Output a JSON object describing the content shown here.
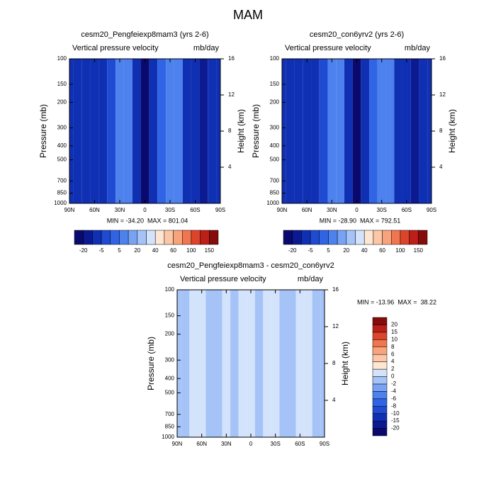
{
  "title": "MAM",
  "chart_data": [
    {
      "type": "contour",
      "title": "cesm20_Pengfeiexp8mam3 (yrs 2-6)",
      "subtitle_left": "Vertical pressure velocity",
      "subtitle_right": "mb/day",
      "stats": "MIN = -34.20  MAX = 801.04",
      "ylabel": "Pressure (mb)",
      "y2label": "Height (km)",
      "x": [
        90,
        80,
        70,
        60,
        50,
        40,
        30,
        20,
        10,
        0,
        -10,
        -20,
        -30,
        -40,
        -50,
        -60,
        -70,
        -80,
        -90
      ],
      "values": [
        -8,
        -8,
        -6,
        -6,
        -9,
        -4,
        12,
        8,
        -12,
        -22,
        -12,
        3,
        12,
        6,
        -6,
        -12,
        -15,
        -6,
        -6
      ],
      "xlim": [
        90,
        -90
      ],
      "xticks": [
        {
          "value": 90,
          "label": "90N"
        },
        {
          "value": 60,
          "label": "60N"
        },
        {
          "value": 30,
          "label": "30N"
        },
        0,
        {
          "value": -30,
          "label": "30S"
        },
        {
          "value": -60,
          "label": "60S"
        },
        {
          "value": -90,
          "label": "90S"
        }
      ],
      "ylim": [
        1000,
        100
      ],
      "ylog": true,
      "yticks": [
        100,
        150,
        200,
        300,
        400,
        500,
        700,
        850,
        1000
      ],
      "y2lim": [
        0,
        16
      ],
      "y2ticks": [
        4,
        8,
        12,
        16
      ],
      "colorbar": {
        "orientation": "horizontal",
        "colors": [
          "#0a0a6e",
          "#0c1a92",
          "#1030b4",
          "#1f4bd2",
          "#3064e4",
          "#4d82ee",
          "#78a3f4",
          "#a6c3f8",
          "#d2e3fb",
          "#fde6d2",
          "#fbc7a6",
          "#f7a37c",
          "#ef7650",
          "#dd452b",
          "#bc1f18",
          "#860b0b"
        ],
        "ticks": [
          -20,
          -5,
          5,
          20,
          40,
          60,
          100,
          150
        ]
      }
    },
    {
      "type": "contour",
      "title": "cesm20_con6yrv2 (yrs 2-6)",
      "subtitle_left": "Vertical pressure velocity",
      "subtitle_right": "mb/day",
      "stats": "MIN = -28.90  MAX = 792.51",
      "ylabel": "Pressure (mb)",
      "y2label": "Height (km)",
      "x": [
        90,
        80,
        70,
        60,
        50,
        40,
        30,
        20,
        10,
        0,
        -10,
        -20,
        -30,
        -40,
        -50,
        -60,
        -70,
        -80,
        -90
      ],
      "values": [
        -8,
        -8,
        -6,
        -6,
        -9,
        -4,
        12,
        8,
        -12,
        -22,
        -12,
        3,
        12,
        6,
        -6,
        -12,
        -15,
        -6,
        -6
      ],
      "xlim": [
        90,
        -90
      ],
      "xticks": [
        {
          "value": 90,
          "label": "90N"
        },
        {
          "value": 60,
          "label": "60N"
        },
        {
          "value": 30,
          "label": "30N"
        },
        0,
        {
          "value": -30,
          "label": "30S"
        },
        {
          "value": -60,
          "label": "60S"
        },
        {
          "value": -90,
          "label": "90S"
        }
      ],
      "ylim": [
        1000,
        100
      ],
      "ylog": true,
      "yticks": [
        100,
        150,
        200,
        300,
        400,
        500,
        700,
        850,
        1000
      ],
      "y2lim": [
        0,
        16
      ],
      "y2ticks": [
        4,
        8,
        12,
        16
      ],
      "colorbar": {
        "orientation": "horizontal",
        "colors": [
          "#0a0a6e",
          "#0c1a92",
          "#1030b4",
          "#1f4bd2",
          "#3064e4",
          "#4d82ee",
          "#78a3f4",
          "#a6c3f8",
          "#d2e3fb",
          "#fde6d2",
          "#fbc7a6",
          "#f7a37c",
          "#ef7650",
          "#dd452b",
          "#bc1f18",
          "#860b0b"
        ],
        "ticks": [
          -20,
          -5,
          5,
          20,
          40,
          60,
          100,
          150
        ]
      }
    },
    {
      "type": "contour",
      "title": "cesm20_Pengfeiexp8mam3 - cesm20_con6yrv2",
      "subtitle_left": "Vertical pressure velocity",
      "subtitle_right": "mb/day",
      "stats": "MIN = -13.96  MAX =  38.22",
      "ylabel": "Pressure (mb)",
      "y2label": "Height (km)",
      "x": [
        90,
        80,
        70,
        60,
        50,
        40,
        30,
        20,
        10,
        0,
        -10,
        -20,
        -30,
        -40,
        -50,
        -60,
        -70,
        -80,
        -90
      ],
      "values": [
        -1,
        -1,
        1,
        1,
        -1,
        -1,
        1,
        -1,
        1,
        1,
        -1,
        1,
        1,
        -1,
        -1,
        1,
        1,
        -1,
        -1
      ],
      "xlim": [
        90,
        -90
      ],
      "xticks": [
        {
          "value": 90,
          "label": "90N"
        },
        {
          "value": 60,
          "label": "60N"
        },
        {
          "value": 30,
          "label": "30N"
        },
        0,
        {
          "value": -30,
          "label": "30S"
        },
        {
          "value": -60,
          "label": "60S"
        },
        {
          "value": -90,
          "label": "90S"
        }
      ],
      "ylim": [
        1000,
        100
      ],
      "ylog": true,
      "yticks": [
        100,
        150,
        200,
        300,
        400,
        500,
        700,
        850,
        1000
      ],
      "y2lim": [
        0,
        16
      ],
      "y2ticks": [
        4,
        8,
        12,
        16
      ],
      "colorbar": {
        "orientation": "vertical",
        "colors": [
          "#0a0a6e",
          "#0c1a92",
          "#1030b4",
          "#1f4bd2",
          "#3064e4",
          "#4d82ee",
          "#78a3f4",
          "#a6c3f8",
          "#d2e3fb",
          "#fde6d2",
          "#fbc7a6",
          "#f7a37c",
          "#ef7650",
          "#dd452b",
          "#bc1f18",
          "#860b0b"
        ],
        "ticks": [
          -20,
          -15,
          -10,
          -8,
          -6,
          -4,
          -2,
          0,
          2,
          4,
          6,
          8,
          10,
          15,
          20
        ]
      }
    }
  ]
}
